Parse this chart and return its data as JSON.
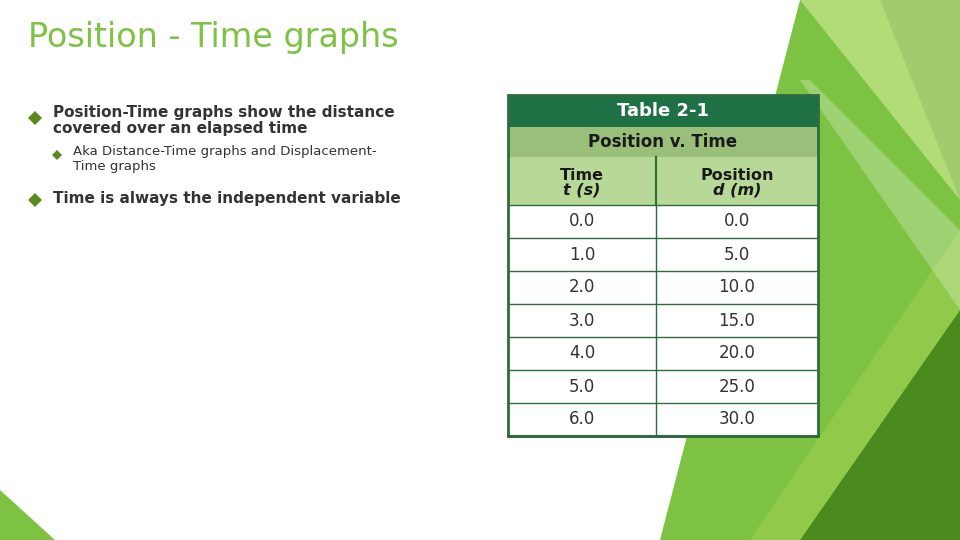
{
  "title": "Position - Time graphs",
  "title_color": "#7dc242",
  "title_fontsize": 24,
  "background_color": "#ffffff",
  "bullet1_text_line1": "Position-Time graphs show the distance",
  "bullet1_text_line2": "covered over an elapsed time",
  "sub_bullet1_line1": "Aka Distance-Time graphs and Displacement-",
  "sub_bullet1_line2": "Time graphs",
  "bullet2_text": "Time is always the independent variable",
  "bullet_text_color": "#333333",
  "diamond_color": "#5a8a1f",
  "table_title": "Table 2-1",
  "table_title_bg": "#1e7145",
  "table_title_color": "#ffffff",
  "table_subtitle": "Position v. Time",
  "table_subtitle_bg": "#9abf7a",
  "table_header_bg": "#b8d898",
  "table_row_bg": "#ffffff",
  "table_border_color": "#2e6b3e",
  "col1_header_line1": "Time",
  "col1_header_line2": "t (s)",
  "col2_header_line1": "Position",
  "col2_header_line2": "d (m)",
  "time_values": [
    "0.0",
    "1.0",
    "2.0",
    "3.0",
    "4.0",
    "5.0",
    "6.0"
  ],
  "position_values": [
    "0.0",
    "5.0",
    "10.0",
    "15.0",
    "20.0",
    "25.0",
    "30.0"
  ],
  "bg_shape1_color": "#7dc242",
  "bg_shape2_color": "#5a9e28",
  "bg_shape3_color": "#4a8a1f",
  "bg_shape4_color": "#c8e890",
  "bg_shape5_color": "#a0d050"
}
